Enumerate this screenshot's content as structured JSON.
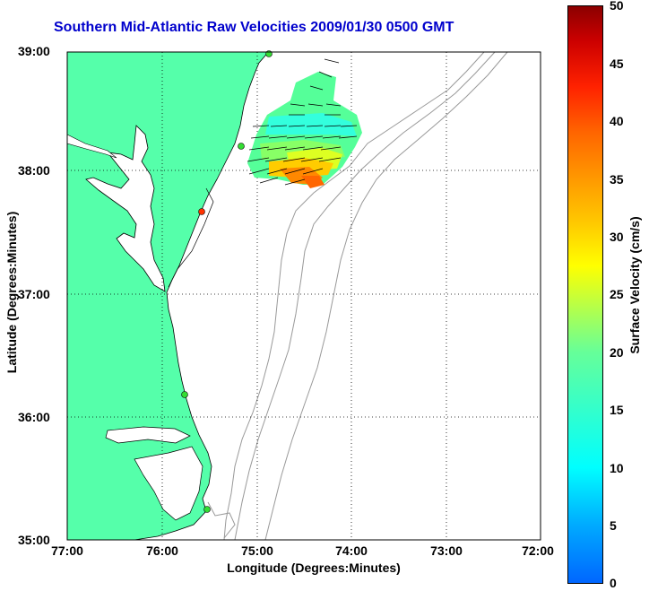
{
  "title": "Southern Mid-Atlantic Raw Velocities 2009/01/30 0500 GMT",
  "axes": {
    "xlabel": "Longitude (Degrees:Minutes)",
    "ylabel": "Latitude (Degrees:Minutes)",
    "x_ticks": [
      "77:00",
      "76:00",
      "75:00",
      "74:00",
      "73:00",
      "72:00"
    ],
    "y_ticks": [
      "39:00",
      "38:00",
      "37:00",
      "36:00",
      "35:00"
    ],
    "grid": "dotted"
  },
  "colorbar": {
    "label": "Surface Velocity (cm/s)",
    "ticks": [
      "50",
      "45",
      "40",
      "35",
      "30",
      "25",
      "20",
      "15",
      "10",
      "5",
      "0"
    ],
    "range": [
      0,
      50
    ]
  },
  "colors": {
    "land": "#55ffaa",
    "water": "#ffffff",
    "bathymetry": "#999999",
    "title": "#0000cc"
  },
  "stations": [
    {
      "color": "#33dd33"
    },
    {
      "color": "#33dd33"
    },
    {
      "color": "#ff3300"
    },
    {
      "color": "#33dd33"
    },
    {
      "color": "#33dd33"
    }
  ]
}
